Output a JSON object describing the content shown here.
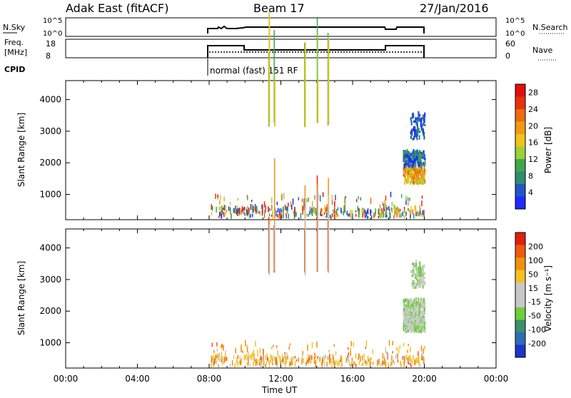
{
  "header": {
    "title": "Adak East (fitACF)",
    "beam": "Beam 17",
    "date": "27/Jan/2016"
  },
  "status_panels": {
    "nsky_label": "N.Sky",
    "nsearch_label": "N.Search",
    "freq_label_line1": "Freq.",
    "freq_label_line2": "[MHz]",
    "nave_label": "Nave",
    "cpid_label": "CPID",
    "cpid_text": "normal (fast) 151 RF",
    "noise_ticks": [
      "10^5",
      "10^0"
    ],
    "freq_ticks": [
      "18",
      "8"
    ],
    "nave_ticks": [
      "60",
      "0"
    ]
  },
  "chart_data": [
    {
      "type": "heatmap",
      "name": "power",
      "ylabel": "Slant Range [km]",
      "yticks": [
        "1000",
        "2000",
        "3000",
        "4000"
      ],
      "ylim": [
        200,
        4600
      ],
      "xlim": [
        0,
        24
      ],
      "colorbar": {
        "label": "Power [dB]",
        "tick_labels": [
          "4",
          "8",
          "12",
          "16",
          "20",
          "24",
          "28"
        ],
        "colors": [
          "#1f2bff",
          "#2155c9",
          "#2e8d6e",
          "#3fa84a",
          "#9cd13a",
          "#f0c21a",
          "#f09a14",
          "#ee6a10",
          "#e8320e",
          "#e0100c"
        ]
      }
    },
    {
      "type": "heatmap",
      "name": "velocity",
      "ylabel": "Slant Range [km]",
      "xlabel": "Time UT",
      "xticks": [
        "00:00",
        "04:00",
        "08:00",
        "12:00",
        "16:00",
        "20:00",
        "00:00"
      ],
      "yticks": [
        "1000",
        "2000",
        "3000",
        "4000"
      ],
      "ylim": [
        200,
        4600
      ],
      "xlim": [
        0,
        24
      ],
      "colorbar": {
        "label": "Velocity [m s⁻¹]",
        "tick_labels": [
          "200",
          "100",
          "50",
          "15",
          "-15",
          "-50",
          "-100",
          "-200"
        ],
        "colors": [
          "#1d35c8",
          "#2a6fb5",
          "#3a8f6d",
          "#6fcf3a",
          "#c8c8c8",
          "#c8c8c8",
          "#f5c020",
          "#f09010",
          "#ee5a10",
          "#e0200c"
        ]
      }
    }
  ]
}
